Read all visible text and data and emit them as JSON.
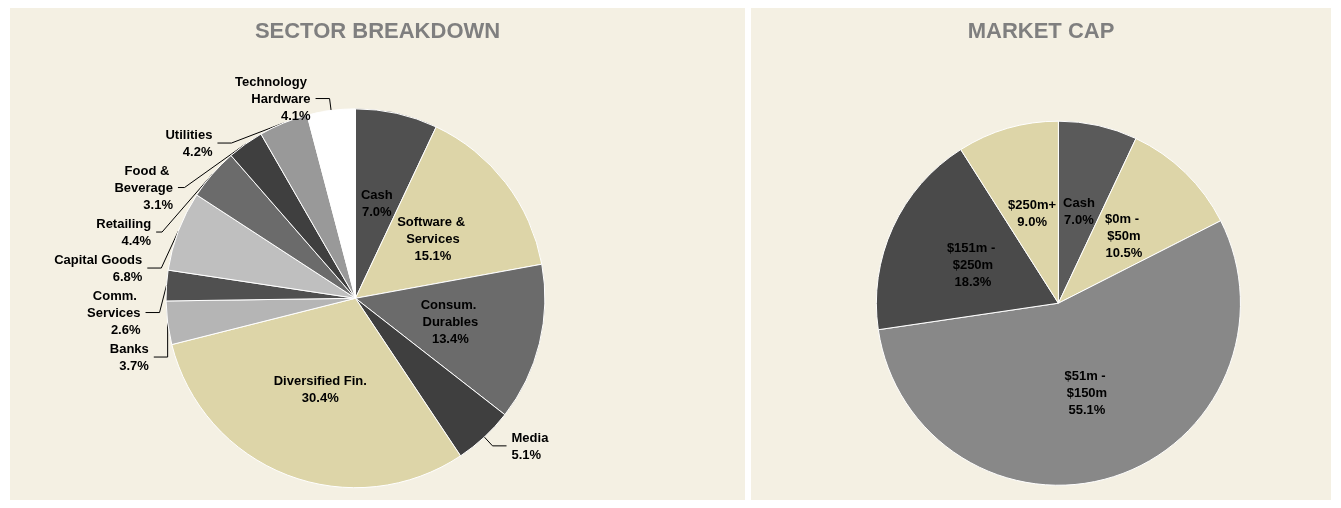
{
  "chart_data": [
    {
      "type": "pie",
      "title": "SECTOR BREAKDOWN",
      "legend": false,
      "categories": [
        "Cash",
        "Software & Services",
        "Consum. Durables",
        "Media",
        "Diversified Fin.",
        "Banks",
        "Comm. Services",
        "Capital Goods",
        "Retailing",
        "Food & Beverage",
        "Utilities",
        "Technology Hardware"
      ],
      "values": [
        7.0,
        15.1,
        13.4,
        5.1,
        30.4,
        3.7,
        2.6,
        6.8,
        4.4,
        3.1,
        4.2,
        4.1
      ],
      "value_labels": [
        "7.0%",
        "15.1%",
        "13.4%",
        "5.1%",
        "30.4%",
        "3.7%",
        "2.6%",
        "6.8%",
        "4.4%",
        "3.1%",
        "4.2%",
        "4.1%"
      ],
      "colors": [
        "#505050",
        "#ddd5a8",
        "#6b6b6b",
        "#3f3f3f",
        "#ddd5a8",
        "#b5b5b5",
        "#505050",
        "#bfbfbf",
        "#6b6b6b",
        "#3f3f3f",
        "#999999",
        "#ffffff"
      ]
    },
    {
      "type": "pie",
      "title": "MARKET CAP",
      "legend": false,
      "categories": [
        "Cash",
        "$0m - $50m",
        "$51m - $150m",
        "$151m - $250m",
        "$250m+"
      ],
      "values": [
        7.0,
        10.5,
        55.1,
        18.3,
        9.0
      ],
      "value_labels": [
        "7.0%",
        "10.5%",
        "55.1%",
        "18.3%",
        "9.0%"
      ],
      "colors": [
        "#5a5a5a",
        "#ddd5a8",
        "#888888",
        "#4a4a4a",
        "#ddd5a8"
      ]
    }
  ]
}
